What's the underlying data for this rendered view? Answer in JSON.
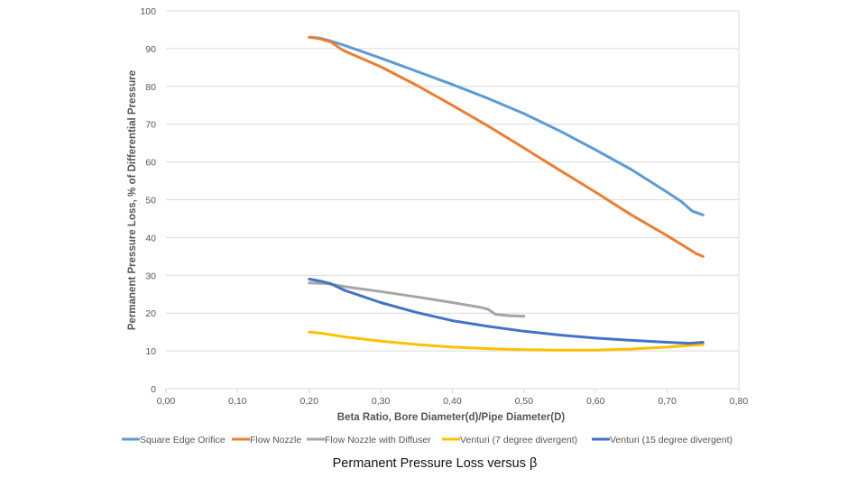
{
  "chart_data": {
    "type": "line",
    "title": "",
    "caption": "Permanent Pressure Loss versus β",
    "xlabel": "Beta Ratio, Bore Diameter(d)/Pipe Diameter(D)",
    "ylabel": "Permanent Pressure Loss, % of Differential Pressure",
    "xlim": [
      0,
      0.8
    ],
    "ylim": [
      0,
      100
    ],
    "x_ticks": [
      0,
      0.1,
      0.2,
      0.3,
      0.4,
      0.5,
      0.6,
      0.7,
      0.8
    ],
    "x_tick_labels": [
      "0,00",
      "0,10",
      "0,20",
      "0,30",
      "0,40",
      "0,50",
      "0,60",
      "0,70",
      "0,80"
    ],
    "y_ticks": [
      0,
      10,
      20,
      30,
      40,
      50,
      60,
      70,
      80,
      90,
      100
    ],
    "y_tick_labels": [
      "0",
      "10",
      "20",
      "30",
      "40",
      "50",
      "60",
      "70",
      "80",
      "90",
      "100"
    ],
    "grid": "horizontal",
    "legend_position": "bottom",
    "series": [
      {
        "name": "Square Edge Orifice",
        "color": "#5B9BD5",
        "points": [
          [
            0.2,
            93
          ],
          [
            0.215,
            92.8
          ],
          [
            0.23,
            92
          ],
          [
            0.25,
            90.8
          ],
          [
            0.3,
            87.5
          ],
          [
            0.35,
            84
          ],
          [
            0.4,
            80.5
          ],
          [
            0.45,
            76.8
          ],
          [
            0.5,
            72.8
          ],
          [
            0.55,
            68.2
          ],
          [
            0.6,
            63.2
          ],
          [
            0.65,
            58
          ],
          [
            0.7,
            52
          ],
          [
            0.72,
            49.5
          ],
          [
            0.735,
            47
          ],
          [
            0.75,
            46
          ]
        ]
      },
      {
        "name": "Flow Nozzle",
        "color": "#ED7D31",
        "points": [
          [
            0.2,
            93
          ],
          [
            0.215,
            92.6
          ],
          [
            0.23,
            91.8
          ],
          [
            0.245,
            89.8
          ],
          [
            0.25,
            89.3
          ],
          [
            0.3,
            85.2
          ],
          [
            0.35,
            80.3
          ],
          [
            0.4,
            75
          ],
          [
            0.45,
            69.5
          ],
          [
            0.5,
            63.7
          ],
          [
            0.55,
            57.8
          ],
          [
            0.6,
            52
          ],
          [
            0.65,
            46
          ],
          [
            0.7,
            40.5
          ],
          [
            0.73,
            37
          ],
          [
            0.74,
            35.8
          ],
          [
            0.75,
            35
          ]
        ]
      },
      {
        "name": "Flow Nozzle with Diffuser",
        "color": "#A5A5A5",
        "points": [
          [
            0.2,
            28
          ],
          [
            0.225,
            27.8
          ],
          [
            0.25,
            27
          ],
          [
            0.3,
            25.7
          ],
          [
            0.35,
            24.3
          ],
          [
            0.4,
            22.8
          ],
          [
            0.44,
            21.5
          ],
          [
            0.45,
            21
          ],
          [
            0.46,
            19.7
          ],
          [
            0.48,
            19.3
          ],
          [
            0.5,
            19.2
          ]
        ]
      },
      {
        "name": "Venturi (7 degree divergent)",
        "color": "#FFC000",
        "points": [
          [
            0.2,
            15
          ],
          [
            0.22,
            14.6
          ],
          [
            0.25,
            13.7
          ],
          [
            0.3,
            12.6
          ],
          [
            0.35,
            11.7
          ],
          [
            0.4,
            11
          ],
          [
            0.45,
            10.6
          ],
          [
            0.5,
            10.3
          ],
          [
            0.55,
            10.2
          ],
          [
            0.6,
            10.2
          ],
          [
            0.65,
            10.5
          ],
          [
            0.7,
            11
          ],
          [
            0.75,
            11.7
          ]
        ]
      },
      {
        "name": "Venturi (15 degree divergent)",
        "color": "#4472C4",
        "points": [
          [
            0.2,
            29
          ],
          [
            0.215,
            28.5
          ],
          [
            0.23,
            27.8
          ],
          [
            0.25,
            26
          ],
          [
            0.3,
            22.8
          ],
          [
            0.35,
            20.2
          ],
          [
            0.4,
            18
          ],
          [
            0.45,
            16.5
          ],
          [
            0.5,
            15.2
          ],
          [
            0.55,
            14.2
          ],
          [
            0.6,
            13.4
          ],
          [
            0.65,
            12.8
          ],
          [
            0.7,
            12.3
          ],
          [
            0.73,
            12
          ],
          [
            0.75,
            12.3
          ]
        ]
      }
    ]
  }
}
